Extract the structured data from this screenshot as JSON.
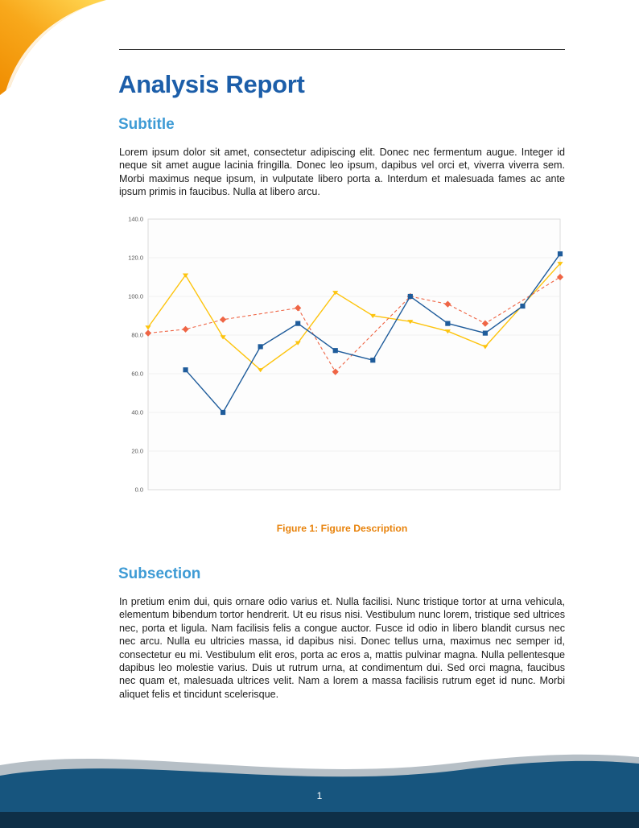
{
  "page": {
    "title": "Analysis Report",
    "page_number": "1"
  },
  "sections": [
    {
      "heading": "Subtitle",
      "body": "Lorem ipsum dolor sit amet, consectetur adipiscing elit. Donec nec fermentum augue. Integer id neque sit amet augue lacinia fringilla. Donec leo ipsum, dapibus vel orci et, viverra viverra sem. Morbi maximus neque ipsum, in vulputate libero porta a. Interdum et malesuada fames ac ante ipsum primis in faucibus. Nulla at libero arcu."
    },
    {
      "heading": "Subsection",
      "body": "In pretium enim dui, quis ornare odio varius et. Nulla facilisi. Nunc tristique tortor at urna vehicula, elementum bibendum tortor hendrerit. Ut eu risus nisi. Vestibulum nunc lorem, tristique sed ultrices nec, porta et ligula. Nam facilisis felis a congue auctor. Fusce id odio in libero blandit cursus nec nec arcu. Nulla eu ultricies massa, id dapibus nisi. Donec tellus urna, maximus nec semper id, consectetur eu mi. Vestibulum elit eros, porta ac eros a, mattis pulvinar magna. Nulla pellentesque dapibus leo molestie varius. Duis ut rutrum urna, at condimentum dui. Sed orci magna, faucibus nec quam et, malesuada ultrices velit. Nam a lorem a massa facilisis rutrum eget id nunc. Morbi aliquet felis et tincidunt scelerisque."
    }
  ],
  "figure": {
    "caption_label": "Figure 1:",
    "caption_text": "Figure Description"
  },
  "colors": {
    "title_color": "#1C5EA9",
    "heading_color": "#3E9BD5",
    "caption_color": "#E8830C",
    "footer_blue": "#17557E",
    "footer_strip": "#0E2F47",
    "footer_gray": "#B6BFC6",
    "corner_orange": "#EF8C00",
    "corner_amber": "#F8A81B",
    "corner_yellow": "#FFD34E"
  },
  "chart_data": {
    "type": "line",
    "title": "",
    "xlabel": "",
    "ylabel": "",
    "ylim": [
      0,
      140
    ],
    "yticks": [
      0,
      20,
      40,
      60,
      80,
      100,
      120,
      140
    ],
    "ytick_labels": [
      "0.0",
      "20.0",
      "40.0",
      "60.0",
      "80.0",
      "100.0",
      "120.0",
      "140.0"
    ],
    "x": [
      1,
      2,
      3,
      4,
      5,
      6,
      7,
      8,
      9,
      10,
      11,
      12
    ],
    "grid": "horizontal",
    "legend_position": "none",
    "series": [
      {
        "name": "yellow-series",
        "color": "#FDC40E",
        "line": "solid",
        "marker": "triangle-down",
        "values": [
          84,
          111,
          79,
          62,
          76,
          102,
          90,
          87,
          82,
          74,
          null,
          117
        ]
      },
      {
        "name": "red-series",
        "color": "#EF6545",
        "line": "dashed",
        "marker": "diamond",
        "values": [
          81,
          83,
          88,
          null,
          94,
          61,
          null,
          100,
          96,
          86,
          null,
          110
        ]
      },
      {
        "name": "blue-series",
        "color": "#1F5C9B",
        "line": "solid",
        "marker": "square",
        "values": [
          null,
          62,
          40,
          74,
          86,
          72,
          67,
          100,
          86,
          81,
          95,
          122
        ]
      }
    ]
  }
}
